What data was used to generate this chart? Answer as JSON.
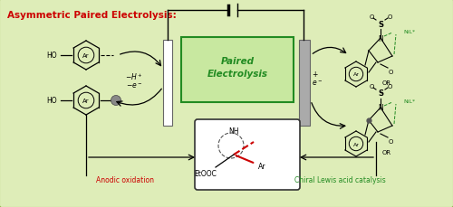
{
  "title": "Asymmetric Paired Electrolysis:",
  "title_color": "#cc0000",
  "title_fontsize": 7.5,
  "bg_outer": "#d4c870",
  "bg_inner": "#deedb8",
  "paired_box_edgecolor": "#228B22",
  "paired_box_facecolor": "#c8e8a0",
  "paired_text_color": "#228B22",
  "anode_label": "Anodic oxidation",
  "cathode_label": "Chiral Lewis acid catalysis",
  "anode_label_color": "#cc0000",
  "cathode_label_color": "#228B22",
  "nil_color": "#228B22",
  "electrode_white": "#ffffff",
  "electrode_gray": "#aaaaaa",
  "arrow_color": "#111111",
  "red_bond_color": "#cc0000"
}
